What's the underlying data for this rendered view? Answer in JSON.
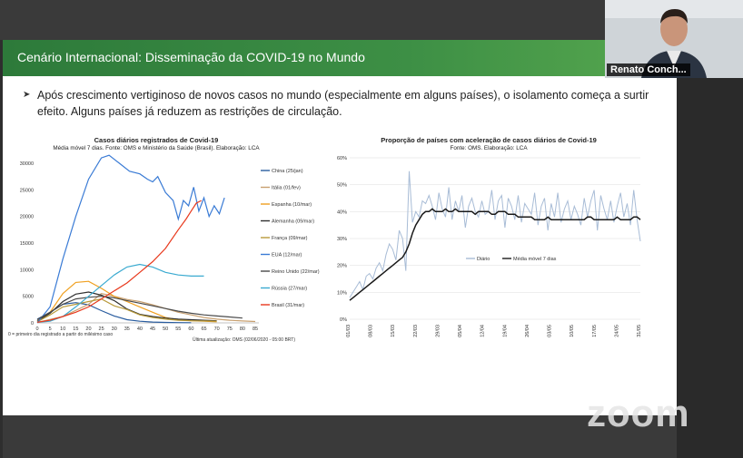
{
  "slide": {
    "title": "Cenário Internacional: Disseminação da COVID-19 no Mundo",
    "bullet": "Após crescimento vertiginoso de novos casos no mundo (especialmente em alguns países), o isolamento começa a surtir efeito. Alguns países já reduzem as restrições de circulação."
  },
  "participant": {
    "name": "Renato Conch..."
  },
  "watermark": "zoom",
  "colors": {
    "banner": "#3d8f45",
    "daily": "#a8bcd6",
    "average": "#1a1a1a"
  },
  "chart_data": [
    {
      "type": "line",
      "title": "Casos diários registrados de Covid-19",
      "subtitle": "Média móvel 7 dias. Fonte: OMS e Ministério da Saúde (Brasil). Elaboração: LCA",
      "xlabel": "",
      "ylabel": "",
      "xlim": [
        0,
        85
      ],
      "ylim": [
        0,
        30000
      ],
      "x_ticks": [
        "0",
        "5",
        "10",
        "15",
        "20",
        "25",
        "30",
        "35",
        "40",
        "45",
        "50",
        "55",
        "60",
        "65",
        "70",
        "75",
        "80",
        "85"
      ],
      "y_ticks": [
        "0",
        "5000",
        "10000",
        "15000",
        "20000",
        "25000",
        "30000"
      ],
      "note": "0 = primeiro dia registrado a partir do milésimo caso",
      "update": "Última atualização: OMS (02/06/2020 - 05:00 BRT)",
      "series": [
        {
          "name": "China (25/jan)",
          "color": "#2a5d9f",
          "points": [
            [
              0,
              700
            ],
            [
              5,
              2000
            ],
            [
              10,
              3500
            ],
            [
              15,
              3800
            ],
            [
              20,
              3400
            ],
            [
              25,
              2300
            ],
            [
              30,
              1300
            ],
            [
              35,
              600
            ],
            [
              40,
              300
            ],
            [
              45,
              150
            ],
            [
              50,
              80
            ],
            [
              55,
              50
            ],
            [
              60,
              40
            ]
          ]
        },
        {
          "name": "Itália (01/fev)",
          "color": "#c8a070",
          "points": [
            [
              0,
              100
            ],
            [
              10,
              1200
            ],
            [
              20,
              3500
            ],
            [
              25,
              5500
            ],
            [
              30,
              5000
            ],
            [
              35,
              4400
            ],
            [
              40,
              4000
            ],
            [
              45,
              3400
            ],
            [
              50,
              2700
            ],
            [
              55,
              2000
            ],
            [
              60,
              1500
            ],
            [
              65,
              1000
            ],
            [
              70,
              700
            ],
            [
              75,
              500
            ],
            [
              80,
              350
            ],
            [
              85,
              250
            ]
          ]
        },
        {
          "name": "Espanha (10/mar)",
          "color": "#f0a020",
          "points": [
            [
              0,
              300
            ],
            [
              5,
              2000
            ],
            [
              10,
              5500
            ],
            [
              15,
              7600
            ],
            [
              20,
              7800
            ],
            [
              25,
              6500
            ],
            [
              30,
              5000
            ],
            [
              35,
              4000
            ],
            [
              40,
              3000
            ],
            [
              45,
              2000
            ],
            [
              50,
              1000
            ],
            [
              55,
              600
            ],
            [
              60,
              400
            ],
            [
              65,
              300
            ],
            [
              70,
              200
            ]
          ]
        },
        {
          "name": "Alemanha (09/mar)",
          "color": "#303030",
          "points": [
            [
              0,
              300
            ],
            [
              5,
              1800
            ],
            [
              10,
              4000
            ],
            [
              15,
              5400
            ],
            [
              20,
              5800
            ],
            [
              25,
              5200
            ],
            [
              30,
              4200
            ],
            [
              35,
              2600
            ],
            [
              40,
              1600
            ],
            [
              45,
              1200
            ],
            [
              50,
              900
            ],
            [
              55,
              700
            ],
            [
              60,
              600
            ],
            [
              65,
              500
            ],
            [
              70,
              400
            ]
          ]
        },
        {
          "name": "França (09/mar)",
          "color": "#b89a3a",
          "points": [
            [
              0,
              200
            ],
            [
              5,
              1500
            ],
            [
              10,
              3000
            ],
            [
              15,
              3500
            ],
            [
              20,
              4000
            ],
            [
              25,
              4500
            ],
            [
              30,
              3200
            ],
            [
              35,
              2500
            ],
            [
              40,
              1500
            ],
            [
              45,
              1000
            ],
            [
              50,
              700
            ],
            [
              55,
              500
            ],
            [
              60,
              400
            ],
            [
              65,
              350
            ],
            [
              70,
              300
            ]
          ]
        },
        {
          "name": "EUA (12/mar)",
          "color": "#3a7bd5",
          "points": [
            [
              0,
              0
            ],
            [
              5,
              3000
            ],
            [
              10,
              12000
            ],
            [
              15,
              20000
            ],
            [
              20,
              27000
            ],
            [
              25,
              31000
            ],
            [
              28,
              31500
            ],
            [
              32,
              30000
            ],
            [
              36,
              28500
            ],
            [
              40,
              28000
            ],
            [
              43,
              27000
            ],
            [
              45,
              26500
            ],
            [
              47,
              27500
            ],
            [
              50,
              24500
            ],
            [
              53,
              23000
            ],
            [
              55,
              19500
            ],
            [
              57,
              23000
            ],
            [
              59,
              22000
            ],
            [
              61,
              25500
            ],
            [
              63,
              21000
            ],
            [
              65,
              23500
            ],
            [
              67,
              20000
            ],
            [
              69,
              22000
            ],
            [
              71,
              20500
            ],
            [
              73,
              23500
            ]
          ]
        },
        {
          "name": "Reino Unido (22/mar)",
          "color": "#4a4a4a",
          "points": [
            [
              0,
              600
            ],
            [
              5,
              2000
            ],
            [
              10,
              3500
            ],
            [
              15,
              4500
            ],
            [
              20,
              4800
            ],
            [
              25,
              5000
            ],
            [
              30,
              4700
            ],
            [
              35,
              4200
            ],
            [
              40,
              3700
            ],
            [
              45,
              3200
            ],
            [
              50,
              2700
            ],
            [
              55,
              2200
            ],
            [
              60,
              1800
            ],
            [
              65,
              1500
            ],
            [
              70,
              1300
            ],
            [
              75,
              1100
            ],
            [
              80,
              900
            ]
          ]
        },
        {
          "name": "Rússia (27/mar)",
          "color": "#3aaad0",
          "points": [
            [
              0,
              100
            ],
            [
              5,
              300
            ],
            [
              10,
              1200
            ],
            [
              15,
              3000
            ],
            [
              20,
              5000
            ],
            [
              25,
              7000
            ],
            [
              30,
              9000
            ],
            [
              35,
              10500
            ],
            [
              40,
              11000
            ],
            [
              45,
              10500
            ],
            [
              50,
              9500
            ],
            [
              55,
              9000
            ],
            [
              60,
              8800
            ],
            [
              65,
              8800
            ]
          ]
        },
        {
          "name": "Brasil (31/mar)",
          "color": "#e8391d",
          "points": [
            [
              0,
              100
            ],
            [
              5,
              500
            ],
            [
              10,
              1200
            ],
            [
              15,
              2000
            ],
            [
              20,
              3000
            ],
            [
              25,
              4500
            ],
            [
              30,
              6000
            ],
            [
              35,
              7500
            ],
            [
              40,
              9500
            ],
            [
              45,
              11500
            ],
            [
              50,
              14000
            ],
            [
              55,
              17500
            ],
            [
              58,
              19500
            ],
            [
              60,
              21000
            ],
            [
              62,
              22500
            ],
            [
              64,
              23000
            ]
          ]
        }
      ]
    },
    {
      "type": "line",
      "title": "Proporção de países com aceleração de casos diários de Covid-19",
      "subtitle": "Fonte: OMS. Elaboração: LCA",
      "xlabel": "",
      "ylabel": "",
      "ylim": [
        0,
        60
      ],
      "y_ticks": [
        "0%",
        "10%",
        "20%",
        "30%",
        "40%",
        "50%",
        "60%"
      ],
      "x_ticks": [
        "01/03",
        "08/03",
        "15/03",
        "22/03",
        "29/03",
        "05/04",
        "12/04",
        "19/04",
        "26/04",
        "03/05",
        "10/05",
        "17/05",
        "24/05",
        "31/05"
      ],
      "series": [
        {
          "name": "Diário",
          "color": "#a8bcd6",
          "values": [
            8,
            10,
            12,
            14,
            11,
            16,
            17,
            15,
            19,
            21,
            18,
            24,
            28,
            26,
            22,
            33,
            30,
            18,
            55,
            36,
            40,
            38,
            44,
            43,
            46,
            42,
            37,
            47,
            41,
            38,
            49,
            37,
            44,
            40,
            46,
            34,
            42,
            45,
            40,
            38,
            44,
            39,
            40,
            48,
            37,
            44,
            46,
            34,
            45,
            42,
            37,
            46,
            36,
            43,
            41,
            39,
            47,
            35,
            42,
            45,
            33,
            43,
            38,
            47,
            36,
            41,
            44,
            37,
            42,
            39,
            35,
            45,
            38,
            44,
            48,
            33,
            46,
            41,
            37,
            44,
            36,
            42,
            47,
            38,
            43,
            35,
            48,
            37,
            29
          ]
        },
        {
          "name": "Média móvel 7 dias",
          "color": "#1a1a1a",
          "values": [
            7,
            8,
            9,
            10,
            11,
            12,
            13,
            14,
            15,
            16,
            17,
            18,
            19,
            20,
            21,
            22,
            23,
            25,
            28,
            32,
            35,
            37,
            39,
            40,
            40,
            41,
            40,
            40,
            40,
            41,
            40,
            40,
            41,
            40,
            40,
            40,
            40,
            40,
            39,
            40,
            40,
            40,
            40,
            39,
            39,
            40,
            40,
            40,
            39,
            39,
            39,
            38,
            38,
            38,
            38,
            38,
            37,
            37,
            37,
            37,
            38,
            37,
            37,
            37,
            37,
            37,
            37,
            37,
            37,
            37,
            37,
            37,
            38,
            38,
            37,
            37,
            37,
            37,
            37,
            37,
            37,
            38,
            37,
            37,
            37,
            37,
            38,
            38,
            37
          ]
        }
      ]
    }
  ]
}
